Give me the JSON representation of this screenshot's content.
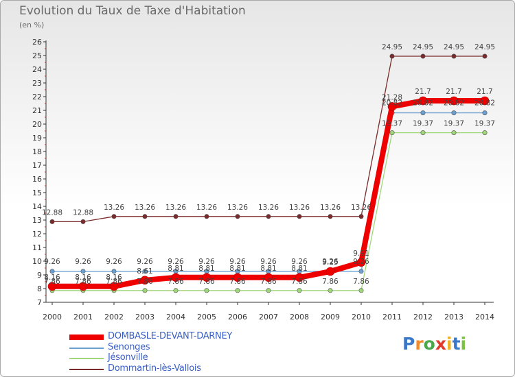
{
  "title": "Evolution du Taux de Taxe d'Habitation",
  "unit_label": "(en %)",
  "logo": {
    "text": "Proxiti",
    "letter_colors": [
      "#3b78c8",
      "#f08a2a",
      "#4aa84a",
      "#e23a2a",
      "#f0b020",
      "#3b78c8",
      "#7cc242"
    ]
  },
  "chart_data": {
    "type": "line",
    "categories": [
      "2000",
      "2001",
      "2002",
      "2003",
      "2004",
      "2005",
      "2006",
      "2007",
      "2008",
      "2009",
      "2010",
      "2011",
      "2012",
      "2013",
      "2014"
    ],
    "y_ticks": [
      7,
      8,
      9,
      10,
      11,
      12,
      13,
      14,
      15,
      16,
      17,
      18,
      19,
      20,
      21,
      22,
      23,
      24,
      25,
      26
    ],
    "ylim": [
      7,
      26
    ],
    "grid": false,
    "legend_position": "bottom-left",
    "series": [
      {
        "name": "DOMBASLE-DEVANT-DARNEY",
        "color": "#ee0000",
        "values": [
          8.16,
          8.16,
          8.16,
          8.61,
          8.81,
          8.81,
          8.81,
          8.81,
          8.81,
          9.25,
          9.91,
          21.28,
          21.7,
          21.7,
          21.7
        ],
        "labels": [
          "8.16",
          "8.16",
          "8.16",
          "8.61",
          "8.81",
          "8.81",
          "8.81",
          "8.81",
          "8.81",
          "9.25",
          "9.91",
          "21.28",
          "21.7",
          "21.7",
          "21.7"
        ]
      },
      {
        "name": "Senonges",
        "color": "#6a9fd0",
        "values": [
          9.26,
          9.26,
          9.26,
          9.26,
          9.26,
          9.26,
          9.26,
          9.26,
          9.26,
          9.26,
          9.26,
          20.82,
          20.82,
          20.82,
          20.82
        ],
        "labels": [
          "9.26",
          "9.26",
          "9.26",
          "9.26",
          "9.26",
          "9.26",
          "9.26",
          "9.26",
          "9.26",
          "9.26",
          "9.26",
          "20.82",
          "20.82",
          "20.82",
          "20.82"
        ]
      },
      {
        "name": "Jésonville",
        "color": "#9fd67a",
        "values": [
          7.86,
          7.86,
          7.86,
          7.86,
          7.86,
          7.86,
          7.86,
          7.86,
          7.86,
          7.86,
          7.86,
          19.37,
          19.37,
          19.37,
          19.37
        ],
        "labels": [
          "7.86",
          "7.86",
          "7.86",
          "7.86",
          "7.86",
          "7.86",
          "7.86",
          "7.86",
          "7.86",
          "7.86",
          "7.86",
          "19.37",
          "19.37",
          "19.37",
          "19.37"
        ]
      },
      {
        "name": "Dommartin-lès-Vallois",
        "color": "#7a2a2a",
        "values": [
          12.88,
          12.88,
          13.26,
          13.26,
          13.26,
          13.26,
          13.26,
          13.26,
          13.26,
          13.26,
          13.26,
          24.95,
          24.95,
          24.95,
          24.95
        ],
        "labels": [
          "12.88",
          "12.88",
          "13.26",
          "13.26",
          "13.26",
          "13.26",
          "13.26",
          "13.26",
          "13.26",
          "13.26",
          "13.26",
          "24.95",
          "24.95",
          "24.95",
          "24.95"
        ]
      }
    ]
  }
}
